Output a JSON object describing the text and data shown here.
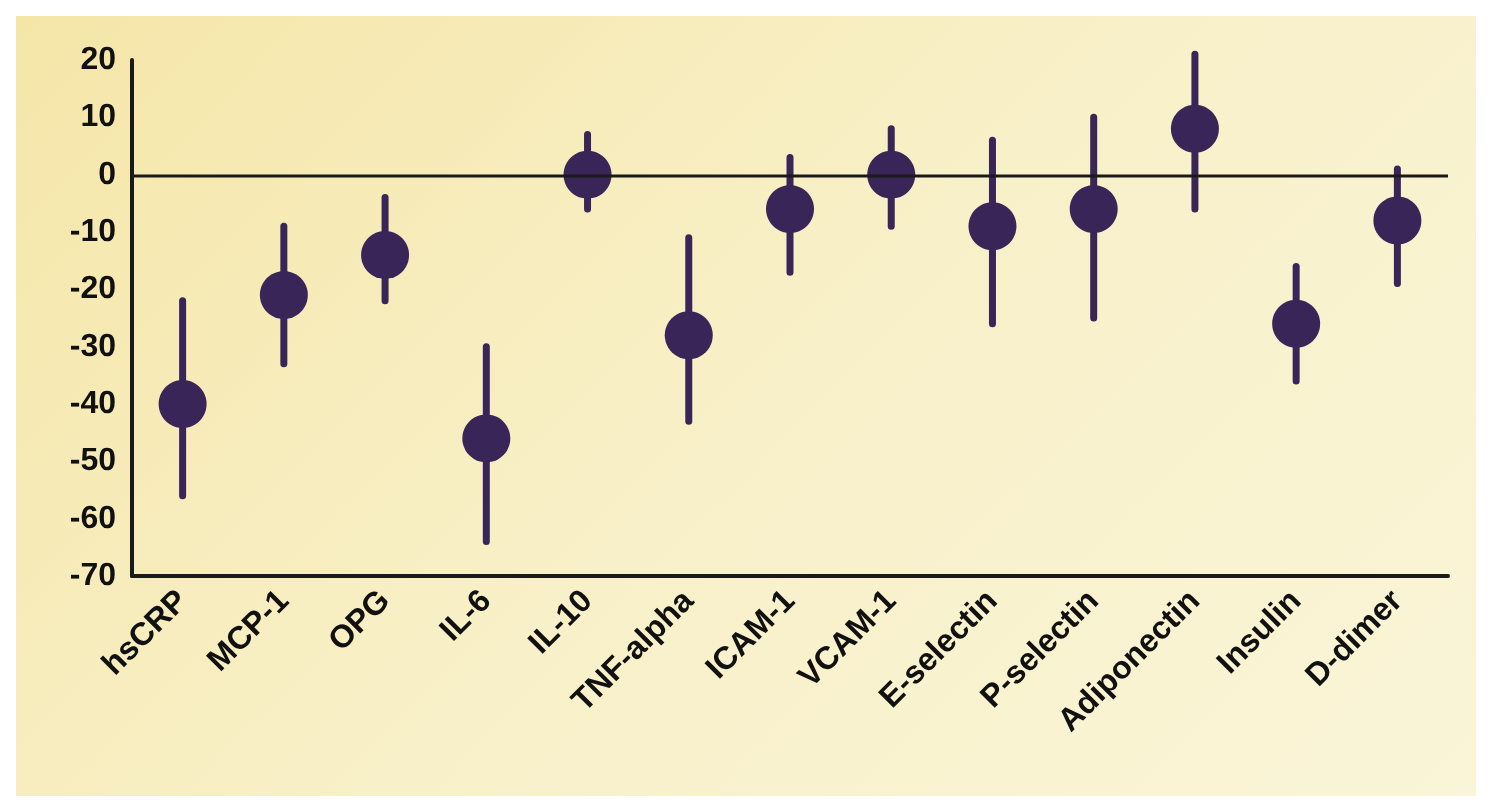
{
  "chart_data": {
    "type": "scatter",
    "categories": [
      "hsCRP",
      "MCP-1",
      "OPG",
      "IL-6",
      "IL-10",
      "TNF-alpha",
      "ICAM-1",
      "VCAM-1",
      "E-selectin",
      "P-selectin",
      "Adiponectin",
      "Insulin",
      "D-dimer"
    ],
    "values": [
      -40,
      -21,
      -14,
      -46,
      0,
      -28,
      -6,
      0,
      -9,
      -6,
      8,
      -26,
      -8
    ],
    "errors": [
      [
        -56,
        -22
      ],
      [
        -33,
        -9
      ],
      [
        -22,
        -4
      ],
      [
        -64,
        -30
      ],
      [
        -6,
        7
      ],
      [
        -43,
        -11
      ],
      [
        -17,
        3
      ],
      [
        -9,
        8
      ],
      [
        -26,
        6
      ],
      [
        -25,
        10
      ],
      [
        -6,
        21
      ],
      [
        -36,
        -16
      ],
      [
        -19,
        1
      ]
    ],
    "color": "#3a2558",
    "ylim": [
      -70,
      20
    ],
    "yticks": [
      -70,
      -60,
      -50,
      -40,
      -30,
      -20,
      -10,
      0,
      10,
      20
    ],
    "ref_lines": [
      {
        "axis": "y",
        "value": 0,
        "color": "#1a1a1a"
      }
    ],
    "grid": false,
    "marker": "circle"
  }
}
